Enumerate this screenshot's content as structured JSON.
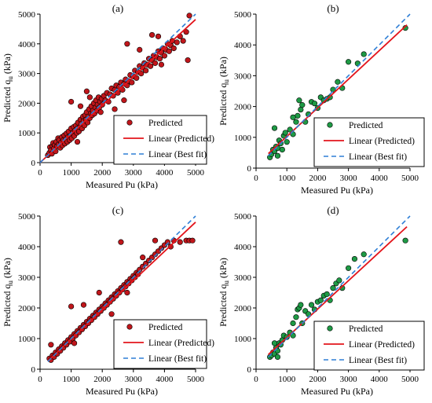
{
  "chart_data": [
    {
      "panel_label": "(a)",
      "type": "scatter",
      "marker_color": "#c0161b",
      "ylabel": "Predicted q",
      "ylabel_sub": "u",
      "ylabel_unit": " (kPa)",
      "xlabel": "Measured Pu (kPa)",
      "xlim": [
        0,
        5000
      ],
      "ylim": [
        0,
        5000
      ],
      "xticks": [
        0,
        1000,
        2000,
        3000,
        4000,
        5000
      ],
      "yticks": [
        0,
        1000,
        2000,
        3000,
        4000,
        5000
      ],
      "grid": false,
      "legend_position": "bottom-right",
      "legend": [
        "Predicted",
        "Linear (Predicted)",
        "Linear (Best fit)"
      ],
      "fit_line": [
        [
          0,
          0
        ],
        [
          5000,
          4820
        ]
      ],
      "best_fit": [
        [
          0,
          0
        ],
        [
          5000,
          5000
        ]
      ],
      "points": [
        [
          250,
          250
        ],
        [
          300,
          330
        ],
        [
          320,
          520
        ],
        [
          350,
          420
        ],
        [
          380,
          300
        ],
        [
          400,
          560
        ],
        [
          420,
          660
        ],
        [
          450,
          480
        ],
        [
          480,
          600
        ],
        [
          500,
          380
        ],
        [
          520,
          700
        ],
        [
          550,
          560
        ],
        [
          580,
          820
        ],
        [
          600,
          620
        ],
        [
          620,
          760
        ],
        [
          650,
          500
        ],
        [
          680,
          680
        ],
        [
          700,
          860
        ],
        [
          720,
          580
        ],
        [
          750,
          760
        ],
        [
          780,
          920
        ],
        [
          800,
          640
        ],
        [
          820,
          780
        ],
        [
          850,
          980
        ],
        [
          880,
          700
        ],
        [
          900,
          860
        ],
        [
          920,
          1050
        ],
        [
          950,
          760
        ],
        [
          980,
          900
        ],
        [
          1000,
          1150
        ],
        [
          1020,
          820
        ],
        [
          1050,
          1000
        ],
        [
          1080,
          1200
        ],
        [
          1100,
          900
        ],
        [
          1120,
          1080
        ],
        [
          1150,
          1250
        ],
        [
          1180,
          1000
        ],
        [
          1200,
          1150
        ],
        [
          1220,
          1350
        ],
        [
          1250,
          1050
        ],
        [
          1280,
          1200
        ],
        [
          1300,
          1450
        ],
        [
          1320,
          1300
        ],
        [
          1350,
          1150
        ],
        [
          1380,
          1550
        ],
        [
          1400,
          1400
        ],
        [
          1430,
          1250
        ],
        [
          1450,
          1600
        ],
        [
          1480,
          1450
        ],
        [
          1500,
          1700
        ],
        [
          1530,
          1350
        ],
        [
          1550,
          1550
        ],
        [
          1580,
          1800
        ],
        [
          1600,
          1500
        ],
        [
          1630,
          1650
        ],
        [
          1650,
          1900
        ],
        [
          1680,
          1600
        ],
        [
          1700,
          1750
        ],
        [
          1730,
          2000
        ],
        [
          1750,
          1650
        ],
        [
          1780,
          1850
        ],
        [
          1800,
          2100
        ],
        [
          1830,
          1750
        ],
        [
          1850,
          1950
        ],
        [
          1880,
          2200
        ],
        [
          1900,
          1850
        ],
        [
          1930,
          2050
        ],
        [
          1950,
          1700
        ],
        [
          1980,
          2150
        ],
        [
          2000,
          1950
        ],
        [
          2050,
          2250
        ],
        [
          2100,
          2100
        ],
        [
          2150,
          2350
        ],
        [
          2200,
          2050
        ],
        [
          2250,
          2300
        ],
        [
          2300,
          2500
        ],
        [
          2350,
          2250
        ],
        [
          2400,
          2450
        ],
        [
          2450,
          2600
        ],
        [
          2500,
          2350
        ],
        [
          2550,
          2550
        ],
        [
          2600,
          2700
        ],
        [
          2650,
          2450
        ],
        [
          2700,
          2650
        ],
        [
          2750,
          2800
        ],
        [
          2800,
          2600
        ],
        [
          2850,
          2750
        ],
        [
          2900,
          2950
        ],
        [
          2950,
          2700
        ],
        [
          3000,
          2900
        ],
        [
          3050,
          3100
        ],
        [
          3100,
          2850
        ],
        [
          3150,
          3050
        ],
        [
          3200,
          3250
        ],
        [
          3250,
          3000
        ],
        [
          3300,
          3200
        ],
        [
          3350,
          3350
        ],
        [
          3400,
          3100
        ],
        [
          3450,
          3300
        ],
        [
          3500,
          3500
        ],
        [
          3550,
          3250
        ],
        [
          3600,
          3450
        ],
        [
          3650,
          3600
        ],
        [
          3700,
          3350
        ],
        [
          3750,
          3550
        ],
        [
          3800,
          3750
        ],
        [
          3850,
          3500
        ],
        [
          3900,
          3700
        ],
        [
          3950,
          3850
        ],
        [
          4000,
          3600
        ],
        [
          4050,
          3800
        ],
        [
          4100,
          4000
        ],
        [
          4150,
          3750
        ],
        [
          4200,
          3950
        ],
        [
          4250,
          4100
        ],
        [
          4300,
          3850
        ],
        [
          4400,
          4050
        ],
        [
          4500,
          4250
        ],
        [
          4600,
          4100
        ],
        [
          4700,
          4400
        ],
        [
          4750,
          3450
        ],
        [
          4800,
          4950
        ],
        [
          1000,
          2050
        ],
        [
          1300,
          1900
        ],
        [
          1500,
          2400
        ],
        [
          1600,
          2200
        ],
        [
          2800,
          4000
        ],
        [
          3200,
          3800
        ],
        [
          3600,
          4300
        ],
        [
          3800,
          4250
        ],
        [
          1200,
          700
        ],
        [
          2400,
          1800
        ],
        [
          2700,
          2100
        ],
        [
          3900,
          3300
        ]
      ]
    },
    {
      "panel_label": "(b)",
      "type": "scatter",
      "marker_color": "#1e9a45",
      "ylabel": "Predicted q",
      "ylabel_sub": "u",
      "ylabel_unit": " (kPa)",
      "xlabel": "Measured Pu (kPa)",
      "xlim": [
        0,
        5000
      ],
      "ylim": [
        0,
        5000
      ],
      "xticks": [
        0,
        1000,
        2000,
        3000,
        4000,
        5000
      ],
      "yticks": [
        0,
        1000,
        2000,
        3000,
        4000,
        5000
      ],
      "grid": false,
      "legend_position": "bottom-right",
      "legend": [
        "Predicted",
        "Linear (Predicted)",
        "Linear (Best fit)"
      ],
      "fit_line": [
        [
          400,
          470
        ],
        [
          4900,
          4650
        ]
      ],
      "best_fit": [
        [
          400,
          400
        ],
        [
          5000,
          5000
        ]
      ],
      "points": [
        [
          450,
          350
        ],
        [
          500,
          450
        ],
        [
          550,
          600
        ],
        [
          600,
          550
        ],
        [
          650,
          700
        ],
        [
          700,
          650
        ],
        [
          750,
          900
        ],
        [
          800,
          800
        ],
        [
          850,
          600
        ],
        [
          900,
          1050
        ],
        [
          950,
          1150
        ],
        [
          1000,
          850
        ],
        [
          1100,
          1250
        ],
        [
          1200,
          1100
        ],
        [
          1300,
          1500
        ],
        [
          1350,
          1700
        ],
        [
          1400,
          2200
        ],
        [
          1450,
          1900
        ],
        [
          1500,
          2050
        ],
        [
          1600,
          1500
        ],
        [
          1700,
          1750
        ],
        [
          1800,
          2150
        ],
        [
          1900,
          2100
        ],
        [
          2000,
          1950
        ],
        [
          2100,
          2300
        ],
        [
          2200,
          2200
        ],
        [
          2300,
          2250
        ],
        [
          2400,
          2300
        ],
        [
          2500,
          2550
        ],
        [
          2650,
          2800
        ],
        [
          2800,
          2600
        ],
        [
          3000,
          3450
        ],
        [
          3300,
          3400
        ],
        [
          3500,
          3700
        ],
        [
          4850,
          4550
        ],
        [
          600,
          1300
        ],
        [
          700,
          400
        ],
        [
          1200,
          1650
        ]
      ]
    },
    {
      "panel_label": "(c)",
      "type": "scatter",
      "marker_color": "#c0161b",
      "ylabel": "Predicted q",
      "ylabel_sub": "u",
      "ylabel_unit": " (kPa)",
      "xlabel": "Measured Pu (kPa)",
      "xlim": [
        0,
        5000
      ],
      "ylim": [
        0,
        5000
      ],
      "xticks": [
        0,
        1000,
        2000,
        3000,
        4000,
        5000
      ],
      "yticks": [
        0,
        1000,
        2000,
        3000,
        4000,
        5000
      ],
      "grid": false,
      "legend_position": "bottom-right",
      "legend": [
        "Predicted",
        "Linear (Predicted)",
        "Linear (Best fit)"
      ],
      "fit_line": [
        [
          250,
          270
        ],
        [
          5000,
          4800
        ]
      ],
      "best_fit": [
        [
          250,
          250
        ],
        [
          5000,
          5000
        ]
      ],
      "points": [
        [
          300,
          350
        ],
        [
          350,
          300
        ],
        [
          400,
          450
        ],
        [
          450,
          400
        ],
        [
          500,
          550
        ],
        [
          550,
          500
        ],
        [
          600,
          650
        ],
        [
          650,
          600
        ],
        [
          700,
          750
        ],
        [
          750,
          700
        ],
        [
          800,
          850
        ],
        [
          850,
          800
        ],
        [
          900,
          950
        ],
        [
          950,
          900
        ],
        [
          1000,
          1050
        ],
        [
          1050,
          1000
        ],
        [
          1100,
          1150
        ],
        [
          1150,
          1100
        ],
        [
          1200,
          1250
        ],
        [
          1250,
          1200
        ],
        [
          1300,
          1350
        ],
        [
          1350,
          1300
        ],
        [
          1400,
          1450
        ],
        [
          1450,
          1400
        ],
        [
          1500,
          1550
        ],
        [
          1550,
          1500
        ],
        [
          1600,
          1650
        ],
        [
          1650,
          1600
        ],
        [
          1700,
          1750
        ],
        [
          1750,
          1700
        ],
        [
          1800,
          1850
        ],
        [
          1850,
          1800
        ],
        [
          1900,
          1950
        ],
        [
          1950,
          1900
        ],
        [
          2000,
          2050
        ],
        [
          2050,
          2000
        ],
        [
          2100,
          2150
        ],
        [
          2150,
          2100
        ],
        [
          2200,
          2250
        ],
        [
          2250,
          2200
        ],
        [
          2300,
          2350
        ],
        [
          2350,
          2300
        ],
        [
          2400,
          2450
        ],
        [
          2450,
          2400
        ],
        [
          2500,
          2550
        ],
        [
          2550,
          2500
        ],
        [
          2600,
          2650
        ],
        [
          2650,
          2600
        ],
        [
          2700,
          2750
        ],
        [
          2750,
          2700
        ],
        [
          2800,
          2850
        ],
        [
          2850,
          2800
        ],
        [
          2900,
          2950
        ],
        [
          2950,
          2900
        ],
        [
          3000,
          3050
        ],
        [
          3050,
          3000
        ],
        [
          3100,
          3150
        ],
        [
          3150,
          3100
        ],
        [
          3200,
          3250
        ],
        [
          3300,
          3350
        ],
        [
          3400,
          3450
        ],
        [
          3500,
          3550
        ],
        [
          3600,
          3650
        ],
        [
          3700,
          3750
        ],
        [
          3800,
          3850
        ],
        [
          3900,
          3950
        ],
        [
          4000,
          4050
        ],
        [
          4100,
          4150
        ],
        [
          4200,
          4000
        ],
        [
          4300,
          4200
        ],
        [
          4500,
          4150
        ],
        [
          4700,
          4200
        ],
        [
          4800,
          4200
        ],
        [
          4900,
          4200
        ],
        [
          350,
          800
        ],
        [
          1000,
          2050
        ],
        [
          1400,
          2100
        ],
        [
          1900,
          2500
        ],
        [
          2600,
          4150
        ],
        [
          3300,
          3650
        ],
        [
          3700,
          4200
        ],
        [
          1100,
          850
        ],
        [
          2300,
          1800
        ],
        [
          2800,
          2500
        ]
      ]
    },
    {
      "panel_label": "(d)",
      "type": "scatter",
      "marker_color": "#1e9a45",
      "ylabel": "Predicted q",
      "ylabel_sub": "u",
      "ylabel_unit": " (kPa)",
      "xlabel": "Measured Pu (kPa)",
      "xlim": [
        0,
        5000
      ],
      "ylim": [
        0,
        5000
      ],
      "xticks": [
        0,
        1000,
        2000,
        3000,
        4000,
        5000
      ],
      "yticks": [
        0,
        1000,
        2000,
        3000,
        4000,
        5000
      ],
      "grid": false,
      "legend_position": "bottom-right",
      "legend": [
        "Predicted",
        "Linear (Predicted)",
        "Linear (Best fit)"
      ],
      "fit_line": [
        [
          400,
          480
        ],
        [
          4900,
          4650
        ]
      ],
      "best_fit": [
        [
          400,
          400
        ],
        [
          5000,
          5000
        ]
      ],
      "points": [
        [
          450,
          400
        ],
        [
          500,
          450
        ],
        [
          550,
          550
        ],
        [
          600,
          500
        ],
        [
          650,
          700
        ],
        [
          700,
          600
        ],
        [
          750,
          850
        ],
        [
          800,
          800
        ],
        [
          850,
          950
        ],
        [
          900,
          1100
        ],
        [
          1000,
          1050
        ],
        [
          1100,
          1200
        ],
        [
          1200,
          1500
        ],
        [
          1300,
          1700
        ],
        [
          1350,
          1950
        ],
        [
          1400,
          2000
        ],
        [
          1450,
          2100
        ],
        [
          1500,
          1500
        ],
        [
          1600,
          1900
        ],
        [
          1700,
          1800
        ],
        [
          1800,
          2100
        ],
        [
          1900,
          1950
        ],
        [
          2000,
          2200
        ],
        [
          2100,
          2250
        ],
        [
          2200,
          2400
        ],
        [
          2300,
          2450
        ],
        [
          2400,
          2250
        ],
        [
          2500,
          2650
        ],
        [
          2600,
          2800
        ],
        [
          2700,
          2900
        ],
        [
          2800,
          2650
        ],
        [
          3000,
          3300
        ],
        [
          3200,
          3600
        ],
        [
          3500,
          3750
        ],
        [
          4850,
          4200
        ],
        [
          600,
          850
        ],
        [
          700,
          400
        ],
        [
          1200,
          1100
        ]
      ]
    }
  ]
}
